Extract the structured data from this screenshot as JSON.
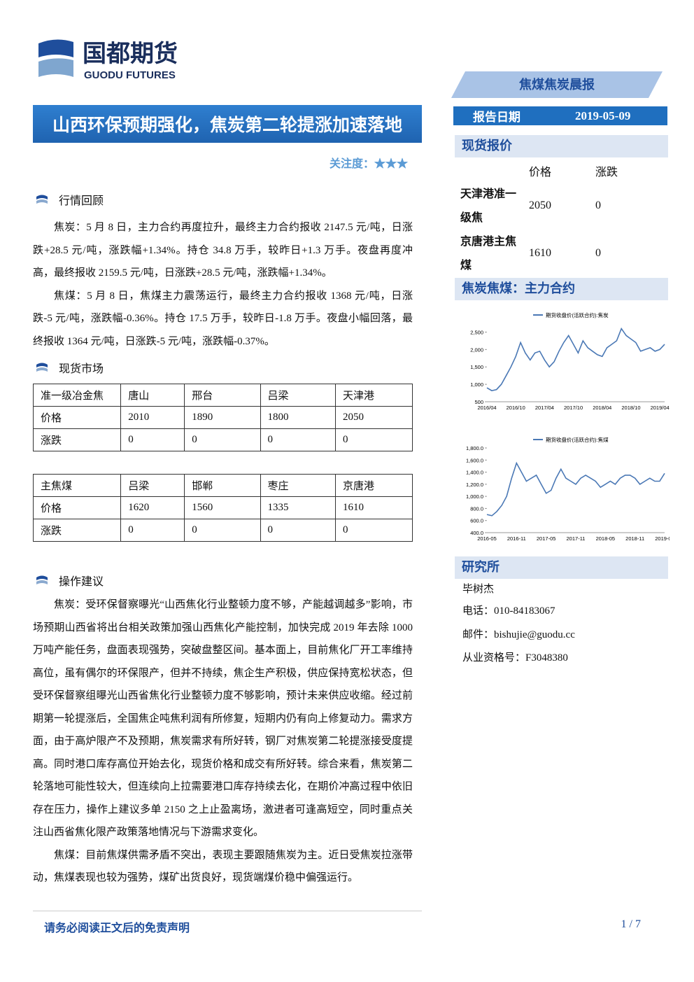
{
  "header": {
    "logo_cn": "国都期货",
    "logo_en": "GUODU FUTURES",
    "report_name": "焦煤焦炭晨报"
  },
  "title": "山西环保预期强化，焦炭第二轮提涨加速落地",
  "attention": {
    "label": "关注度：",
    "stars": "★★★"
  },
  "report_date": {
    "label": "报告日期",
    "value": "2019-05-09"
  },
  "market_review": {
    "heading": "行情回顾",
    "paragraphs": [
      "焦炭：5 月 8 日，主力合约再度拉升，最终主力合约报收 2147.5 元/吨，日涨跌+28.5 元/吨，涨跌幅+1.34%。持仓 34.8 万手，较昨日+1.3 万手。夜盘再度冲高，最终报收 2159.5 元/吨，日涨跌+28.5 元/吨，涨跌幅+1.34%。",
      "焦煤：5 月 8 日，焦煤主力震荡运行，最终主力合约报收 1368 元/吨，日涨跌-5 元/吨，涨跌幅-0.36%。持仓 17.5 万手，较昨日-1.8 万手。夜盘小幅回落，最终报收 1364 元/吨，日涨跌-5 元/吨，涨跌幅-0.37%。"
    ]
  },
  "spot_market": {
    "heading": "现货市场",
    "tables": [
      [
        [
          "准一级冶金焦",
          "唐山",
          "邢台",
          "吕梁",
          "天津港"
        ],
        [
          "价格",
          "2010",
          "1890",
          "1800",
          "2050"
        ],
        [
          "涨跌",
          "0",
          "0",
          "0",
          "0"
        ]
      ],
      [
        [
          "主焦煤",
          "吕梁",
          "邯郸",
          "枣庄",
          "京唐港"
        ],
        [
          "价格",
          "1620",
          "1560",
          "1335",
          "1610"
        ],
        [
          "涨跌",
          "0",
          "0",
          "0",
          "0"
        ]
      ]
    ]
  },
  "advice": {
    "heading": "操作建议",
    "paragraphs": [
      "焦炭：受环保督察曝光“山西焦化行业整顿力度不够，产能越调越多”影响，市场预期山西省将出台相关政策加强山西焦化产能控制，加快完成 2019 年去除 1000 万吨产能任务，盘面表现强势，突破盘整区间。基本面上，目前焦化厂开工率维持高位，虽有偶尔的环保限产，但并不持续，焦企生产积极，供应保持宽松状态，但受环保督察组曝光山西省焦化行业整顿力度不够影响，预计未来供应收缩。经过前期第一轮提涨后，全国焦企吨焦利润有所修复，短期内仍有向上修复动力。需求方面，由于高炉限产不及预期，焦炭需求有所好转，钢厂对焦炭第二轮提涨接受度提高。同时港口库存高位开始去化，现货价格和成交有所好转。综合来看，焦炭第二轮落地可能性较大，但连续向上拉需要港口库存持续去化，在期价冲高过程中依旧存在压力，操作上建议多单 2150 之上止盈离场，激进者可逢高短空，同时重点关注山西省焦化限产政策落地情况与下游需求变化。",
      "焦煤：目前焦煤供需矛盾不突出，表现主要跟随焦炭为主。近日受焦炭拉涨带动，焦煤表现也较为强势，煤矿出货良好，现货端煤价稳中偏强运行。"
    ]
  },
  "spot_quote": {
    "heading": "现货报价",
    "columns": [
      "价格",
      "涨跌"
    ],
    "rows": [
      {
        "name": "天津港准一级焦",
        "price": "2050",
        "change": "0"
      },
      {
        "name": "京唐港主焦煤",
        "price": "1610",
        "change": "0"
      }
    ]
  },
  "futures_heading": "焦炭焦煤：主力合约",
  "chart_data": [
    {
      "type": "line",
      "color": "#4a78b5",
      "categories": [
        "2016/04",
        null,
        null,
        null,
        null,
        null,
        "2016/10",
        null,
        null,
        null,
        null,
        null,
        "2017/04",
        null,
        null,
        null,
        null,
        null,
        "2017/10",
        null,
        null,
        null,
        null,
        null,
        "2018/04",
        null,
        null,
        null,
        null,
        null,
        "2018/10",
        null,
        null,
        null,
        null,
        null,
        "2019/04",
        null
      ],
      "series": [
        {
          "name": "期货收盘价(活跃合约):焦炭",
          "color": "#4a78b5",
          "values": [
            900,
            820,
            850,
            1000,
            1250,
            1500,
            1800,
            2200,
            1900,
            1700,
            1900,
            1950,
            1700,
            1500,
            1650,
            1950,
            2200,
            2400,
            2150,
            1900,
            2250,
            2050,
            1950,
            1850,
            1800,
            2050,
            2150,
            2250,
            2600,
            2400,
            2300,
            2200,
            1950,
            2000,
            2050,
            1950,
            2000,
            2150
          ]
        }
      ],
      "ylim": [
        500,
        2750
      ],
      "yticks": [
        {
          "value": 500,
          "label": "500"
        },
        {
          "value": 1000,
          "label": "1,000"
        },
        {
          "value": 1500,
          "label": "1,500"
        },
        {
          "value": 2000,
          "label": "2,000"
        },
        {
          "value": 2500,
          "label": "2,500"
        }
      ]
    },
    {
      "type": "line",
      "color": "#4a78b5",
      "categories": [
        "2016-05",
        null,
        null,
        null,
        null,
        null,
        "2016-11",
        null,
        null,
        null,
        null,
        null,
        "2017-05",
        null,
        null,
        null,
        null,
        null,
        "2017-11",
        null,
        null,
        null,
        null,
        null,
        "2018-05",
        null,
        null,
        null,
        null,
        null,
        "2018-11",
        null,
        null,
        null,
        null,
        null,
        "2019-05"
      ],
      "series": [
        {
          "name": "期货收盘价(活跃合约):焦煤",
          "color": "#4a78b5",
          "values": [
            700,
            680,
            750,
            850,
            1000,
            1300,
            1550,
            1400,
            1250,
            1300,
            1350,
            1200,
            1050,
            1100,
            1300,
            1450,
            1300,
            1250,
            1200,
            1300,
            1350,
            1300,
            1250,
            1150,
            1200,
            1250,
            1200,
            1300,
            1350,
            1350,
            1300,
            1200,
            1250,
            1300,
            1250,
            1250,
            1380
          ]
        }
      ],
      "ylim": [
        400,
        1800
      ],
      "yticks": [
        {
          "value": 400,
          "label": "400.0"
        },
        {
          "value": 600,
          "label": "600.0"
        },
        {
          "value": 800,
          "label": "800.0"
        },
        {
          "value": 1000,
          "label": "1,000.0"
        },
        {
          "value": 1200,
          "label": "1,200.0"
        },
        {
          "value": 1400,
          "label": "1,400.0"
        },
        {
          "value": 1600,
          "label": "1,600.0"
        },
        {
          "value": 1800,
          "label": "1,800.0"
        }
      ]
    }
  ],
  "research": {
    "heading": "研究所",
    "name": "毕树杰",
    "phone": "电话：010-84183067",
    "email": "邮件：bishujie@guodu.cc",
    "license": "从业资格号：F3048380"
  },
  "footer": {
    "disclaimer": "请务必阅读正文后的免责声明",
    "page": "1 / 7"
  }
}
